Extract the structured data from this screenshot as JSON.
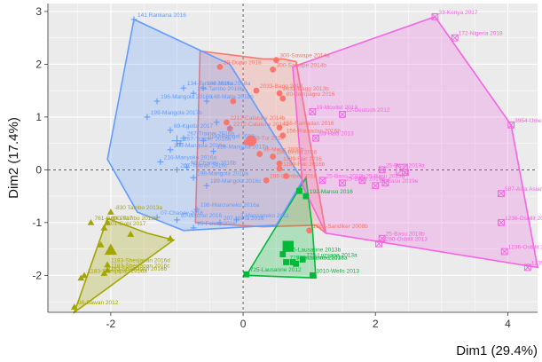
{
  "chart_data": {
    "type": "scatter",
    "title": "",
    "xlabel": "Dim1 (29.4%)",
    "ylabel": "Dim2 (17.4%)",
    "xlim": [
      -2.95,
      4.45
    ],
    "ylim": [
      -2.7,
      3.15
    ],
    "x_ticks": [
      -2,
      0,
      2,
      4
    ],
    "y_ticks": [
      -2,
      -1,
      0,
      1,
      2,
      3
    ],
    "x_tick_labels": [
      "-2",
      "0",
      "2",
      "4"
    ],
    "y_tick_labels": [
      "-2",
      "-1",
      "0",
      "1",
      "2",
      "3"
    ],
    "grid": true,
    "panel_background": "#ebebeb",
    "series": [
      {
        "color": "#a3a500",
        "shape": "triangle",
        "hull": [
          [
            -2.05,
            -0.92
          ],
          [
            -1.45,
            -1.2
          ],
          [
            -1.05,
            -1.33
          ],
          [
            -2.55,
            -2.7
          ]
        ],
        "centroid": [
          -2.0,
          -1.52
        ],
        "points": [
          {
            "x": -2.0,
            "y": -0.8,
            "label": "-830 Tambo 2013a"
          },
          {
            "x": -2.05,
            "y": -1.0,
            "label": "800-Tambo 2013a"
          },
          {
            "x": -2.1,
            "y": -1.1,
            "label": "701-Gobi 2017"
          },
          {
            "x": -2.3,
            "y": -1.0,
            "label": "761-Gobi 2017"
          },
          {
            "x": -1.7,
            "y": -1.22,
            "label": ""
          },
          {
            "x": -1.1,
            "y": -1.3,
            "label": ""
          },
          {
            "x": -2.15,
            "y": -1.42,
            "label": ""
          },
          {
            "x": -2.05,
            "y": -1.8,
            "label": "1183-Shesjapan 2016d"
          },
          {
            "x": -2.05,
            "y": -1.9,
            "label": "1183-Shesjapan 2016c"
          },
          {
            "x": -2.1,
            "y": -1.96,
            "label": "1183-Shesjapan 2016b"
          },
          {
            "x": -2.4,
            "y": -2.0,
            "label": "1183-Shesjapan 2016a"
          },
          {
            "x": -2.45,
            "y": -2.05,
            "label": ""
          },
          {
            "x": -2.55,
            "y": -2.6,
            "label": "98-Sawan 2012"
          }
        ]
      },
      {
        "color": "#f8766d",
        "shape": "circle",
        "hull": [
          [
            -0.65,
            2.25
          ],
          [
            -0.72,
            -1.0
          ],
          [
            0.3,
            -1.08
          ],
          [
            1.1,
            -1.05
          ],
          [
            1.25,
            -1.2
          ],
          [
            0.8,
            2.05
          ],
          [
            0.6,
            2.1
          ],
          [
            0.3,
            2.1
          ]
        ],
        "centroid": [
          0.12,
          0.55
        ],
        "points": [
          {
            "x": -0.35,
            "y": 1.95,
            "label": "29-Duplo 2018"
          },
          {
            "x": 0.5,
            "y": 2.08,
            "label": "300-Sawape 2014a"
          },
          {
            "x": 0.45,
            "y": 1.9,
            "label": "300-Sawape 2014b"
          },
          {
            "x": 0.2,
            "y": 1.5,
            "label": "2033-Bagg 2013"
          },
          {
            "x": 0.55,
            "y": 1.45,
            "label": "2033-Bagg 2013b"
          },
          {
            "x": 0.6,
            "y": 1.35,
            "label": "80-Jampagro 2016"
          },
          {
            "x": -0.25,
            "y": 0.9,
            "label": "2212-Cataluny 2014b"
          },
          {
            "x": -0.2,
            "y": 0.78,
            "label": "2212-Cataluny 2014a"
          },
          {
            "x": 0.55,
            "y": 0.8,
            "label": "156-Ramadan 2016"
          },
          {
            "x": 0.6,
            "y": 0.65,
            "label": "156-Ramadan 2016b"
          },
          {
            "x": 0.05,
            "y": 0.52,
            "label": "658-Tui 2018"
          },
          {
            "x": 0.25,
            "y": 0.3,
            "label": "98-Mertz 2009b"
          },
          {
            "x": 0.45,
            "y": 0.25,
            "label": "280-Berlin 2016"
          },
          {
            "x": 0.55,
            "y": 0.12,
            "label": "1189-Fair 2016"
          },
          {
            "x": 0.55,
            "y": 0.02,
            "label": "1189-Fair 2016b"
          },
          {
            "x": 0.35,
            "y": -0.2,
            "label": "286-Dumbell 2016"
          },
          {
            "x": 1.0,
            "y": -1.15,
            "label": "1863-Sandiker 2008b"
          },
          {
            "x": 0.65,
            "y": -0.12,
            "label": ""
          },
          {
            "x": -0.15,
            "y": 1.3,
            "label": ""
          }
        ]
      },
      {
        "color": "#00ba38",
        "shape": "square",
        "hull": [
          [
            0.05,
            -2.0
          ],
          [
            0.95,
            -0.15
          ],
          [
            1.05,
            -1.15
          ],
          [
            1.1,
            -2.05
          ]
        ],
        "centroid": [
          0.68,
          -1.45
        ],
        "points": [
          {
            "x": 0.95,
            "y": -0.5,
            "label": "192-Manso 2016"
          },
          {
            "x": 0.85,
            "y": -0.4,
            "label": ""
          },
          {
            "x": 0.6,
            "y": -1.6,
            "label": "725-Lausanne 2013b"
          },
          {
            "x": 0.65,
            "y": -1.75,
            "label": "725-Lausanne 2013c"
          },
          {
            "x": 0.75,
            "y": -1.75,
            "label": "725-Luzsane 2013a"
          },
          {
            "x": 0.9,
            "y": -1.7,
            "label": "725-Luzsane 2013a"
          },
          {
            "x": 0.8,
            "y": -1.78,
            "label": ""
          },
          {
            "x": 1.05,
            "y": -2.0,
            "label": "1010-Wells 2013"
          },
          {
            "x": 0.05,
            "y": -1.98,
            "label": "725-Lausanne 2012"
          }
        ]
      },
      {
        "color": "#619cff",
        "shape": "plus",
        "hull": [
          [
            -1.65,
            2.85
          ],
          [
            -2.05,
            0.2
          ],
          [
            -1.6,
            -0.8
          ],
          [
            -0.9,
            -1.15
          ],
          [
            0.5,
            -1.05
          ],
          [
            0.9,
            -0.2
          ],
          [
            -0.2,
            2.0
          ]
        ],
        "centroid": [
          -1.0,
          0.55
        ],
        "points": [
          {
            "x": -1.65,
            "y": 2.85,
            "label": "141 Rankana 2016"
          },
          {
            "x": -0.9,
            "y": 1.55,
            "label": "134-Tambo 2016a"
          },
          {
            "x": -0.75,
            "y": 1.45,
            "label": "134-Tambo 2016b"
          },
          {
            "x": -0.6,
            "y": 1.55,
            "label": "148-Malta 2018a"
          },
          {
            "x": -0.55,
            "y": 1.3,
            "label": "148-Malta 2018b"
          },
          {
            "x": -1.3,
            "y": 1.3,
            "label": "196-Mangola 2016b"
          },
          {
            "x": -1.45,
            "y": 1.0,
            "label": "199-Mangola 2017b"
          },
          {
            "x": -1.1,
            "y": 0.75,
            "label": "69-Kgetla 2017"
          },
          {
            "x": -0.9,
            "y": 0.6,
            "label": "267-Trainer 2016b"
          },
          {
            "x": -0.95,
            "y": 0.5,
            "label": "267-Trainer 2016a"
          },
          {
            "x": -0.6,
            "y": 0.55,
            "label": "1030-Rangel 2018"
          },
          {
            "x": -0.45,
            "y": 0.35,
            "label": "126-Mangola 2017a"
          },
          {
            "x": -1.1,
            "y": 0.38,
            "label": "193-Mangola 2016a"
          },
          {
            "x": -1.25,
            "y": 0.15,
            "label": "216-Manyoko 2016a"
          },
          {
            "x": -1.0,
            "y": 0.0,
            "label": "267-Trainer 2016c"
          },
          {
            "x": -0.85,
            "y": 0.05,
            "label": "98-Chaney 2016b"
          },
          {
            "x": -0.75,
            "y": -0.15,
            "label": "198-Mangola 2016a"
          },
          {
            "x": -0.55,
            "y": -0.3,
            "label": "189-Mangola 2016c"
          },
          {
            "x": -0.7,
            "y": -0.75,
            "label": "198-Manzaneko 2016a"
          },
          {
            "x": -1.3,
            "y": -0.9,
            "label": "07-Chaney 2016"
          },
          {
            "x": -1.0,
            "y": -0.95,
            "label": "97-Bischel 2016"
          },
          {
            "x": -0.35,
            "y": -1.0,
            "label": "207-Maria 2016"
          },
          {
            "x": -0.1,
            "y": -0.95,
            "label": "3-Manzaneko 2011"
          },
          {
            "x": -0.75,
            "y": -1.1,
            "label": "95-Foleta 2016"
          },
          {
            "x": -0.4,
            "y": 0.9,
            "label": ""
          },
          {
            "x": -0.2,
            "y": 0.8,
            "label": ""
          }
        ]
      },
      {
        "color": "#f564e3",
        "shape": "boxcross",
        "hull": [
          [
            0.75,
            1.95
          ],
          [
            2.9,
            2.9
          ],
          [
            4.05,
            0.85
          ],
          [
            4.45,
            -1.85
          ],
          [
            1.25,
            -1.2
          ],
          [
            0.9,
            -0.3
          ]
        ],
        "centroid": [
          2.4,
          0.0
        ],
        "points": [
          {
            "x": 2.9,
            "y": 2.9,
            "label": "33-Kenya 2017"
          },
          {
            "x": 3.2,
            "y": 2.5,
            "label": "172-Nigeria 2018"
          },
          {
            "x": 4.05,
            "y": 0.85,
            "label": "3954-Umer 2015"
          },
          {
            "x": 1.05,
            "y": 1.1,
            "label": "19-Moullet 2013"
          },
          {
            "x": 1.5,
            "y": 1.05,
            "label": "12-Deutsch 2012"
          },
          {
            "x": 1.1,
            "y": 0.6,
            "label": "65-Haiti 2013"
          },
          {
            "x": 3.9,
            "y": -0.45,
            "label": "587-Asia Asian 2014"
          },
          {
            "x": 2.1,
            "y": 0.0,
            "label": "25-Basu 2019a"
          },
          {
            "x": 1.2,
            "y": -0.2,
            "label": "25-Basu 2019b"
          },
          {
            "x": 1.5,
            "y": -0.25,
            "label": "25-Basu 2019c"
          },
          {
            "x": 1.8,
            "y": -0.2,
            "label": "25-Basu 2019d"
          },
          {
            "x": 2.0,
            "y": -0.3,
            "label": "25-Basu 2019e"
          },
          {
            "x": 2.15,
            "y": -0.25,
            "label": ""
          },
          {
            "x": 2.45,
            "y": -0.05,
            "label": ""
          },
          {
            "x": 3.9,
            "y": -1.0,
            "label": "1236-Osbilit 2010b"
          },
          {
            "x": 2.1,
            "y": -1.3,
            "label": "25-Basu 2019b"
          },
          {
            "x": 2.05,
            "y": -1.4,
            "label": "1280-Osbilit 2013"
          },
          {
            "x": 3.95,
            "y": -1.55,
            "label": "1236-Osbilit 2013a"
          },
          {
            "x": 4.3,
            "y": -1.85,
            "label": "1235-Osbilit 2009"
          }
        ]
      }
    ]
  }
}
